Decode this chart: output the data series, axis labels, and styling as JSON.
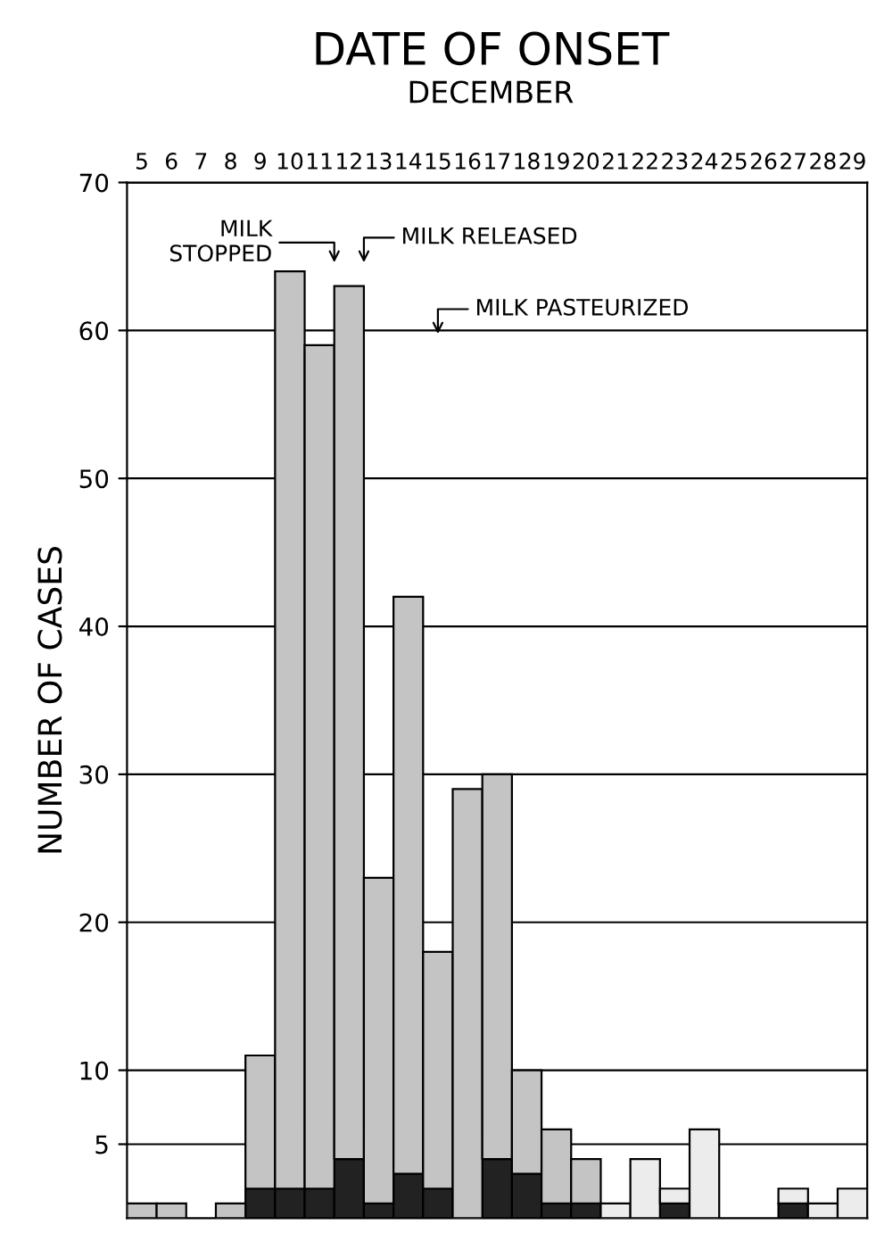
{
  "chart_data": {
    "type": "bar",
    "stacked": true,
    "title": "DATE OF ONSET",
    "subtitle": "DECEMBER",
    "ylabel": "NUMBER OF CASES",
    "categories": [
      "5",
      "6",
      "7",
      "8",
      "9",
      "10",
      "11",
      "12",
      "13",
      "14",
      "15",
      "16",
      "17",
      "18",
      "19",
      "20",
      "21",
      "22",
      "23",
      "24",
      "25",
      "26",
      "27",
      "28",
      "29"
    ],
    "series": [
      {
        "color": "#222222",
        "values": [
          0,
          0,
          0,
          0,
          2,
          2,
          2,
          4,
          1,
          3,
          2,
          0,
          4,
          3,
          1,
          1,
          0,
          0,
          1,
          0,
          0,
          0,
          1,
          0,
          0
        ]
      },
      {
        "color": "#c4c4c4",
        "values": [
          1,
          1,
          0,
          1,
          9,
          62,
          57,
          59,
          22,
          39,
          16,
          29,
          26,
          7,
          5,
          3,
          0,
          0,
          0,
          0,
          0,
          0,
          0,
          0,
          0
        ]
      },
      {
        "color": "#ececec",
        "values": [
          0,
          0,
          0,
          0,
          0,
          0,
          0,
          0,
          0,
          0,
          0,
          0,
          0,
          0,
          0,
          0,
          1,
          4,
          1,
          6,
          0,
          0,
          1,
          1,
          2
        ]
      }
    ],
    "ylim": [
      0,
      70
    ],
    "yticks": [
      5,
      10,
      20,
      30,
      40,
      50,
      60,
      70
    ],
    "grid": "y",
    "annotations": [
      "MILK\nSTOPPED",
      "MILK RELEASED",
      "MILK PASTEURIZED"
    ]
  }
}
